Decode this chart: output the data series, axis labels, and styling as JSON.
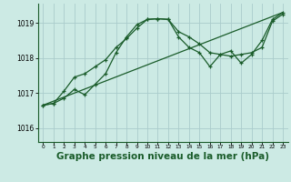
{
  "bg_color": "#cceae4",
  "grid_color": "#aacccc",
  "line_color": "#1a5c2a",
  "marker_color": "#1a5c2a",
  "xlabel": "Graphe pression niveau de la mer (hPa)",
  "xlabel_fontsize": 7.5,
  "xlim": [
    -0.5,
    23.5
  ],
  "ylim": [
    1015.6,
    1019.55
  ],
  "yticks": [
    1016,
    1017,
    1018,
    1019
  ],
  "xticks": [
    0,
    1,
    2,
    3,
    4,
    5,
    6,
    7,
    8,
    9,
    10,
    11,
    12,
    13,
    14,
    15,
    16,
    17,
    18,
    19,
    20,
    21,
    22,
    23
  ],
  "line1_x": [
    0,
    1,
    2,
    3,
    4,
    5,
    6,
    7,
    8,
    9,
    10,
    11,
    12,
    13,
    14,
    15,
    16,
    17,
    18,
    19,
    20,
    21,
    22,
    23
  ],
  "line1_y": [
    1016.65,
    1016.7,
    1017.05,
    1017.45,
    1017.55,
    1017.75,
    1017.95,
    1018.3,
    1018.55,
    1018.85,
    1019.1,
    1019.12,
    1019.1,
    1018.75,
    1018.6,
    1018.4,
    1018.15,
    1018.1,
    1018.05,
    1018.1,
    1018.15,
    1018.3,
    1019.05,
    1019.25
  ],
  "line2_x": [
    0,
    1,
    2,
    3,
    4,
    5,
    6,
    7,
    8,
    9,
    10,
    11,
    12,
    13,
    14,
    15,
    16,
    17,
    18,
    19,
    20,
    21,
    22,
    23
  ],
  "line2_y": [
    1016.65,
    1016.7,
    1016.85,
    1017.1,
    1016.95,
    1017.25,
    1017.55,
    1018.15,
    1018.6,
    1018.95,
    1019.1,
    1019.12,
    1019.1,
    1018.6,
    1018.3,
    1018.15,
    1017.75,
    1018.1,
    1018.2,
    1017.85,
    1018.1,
    1018.5,
    1019.1,
    1019.3
  ],
  "line3_x": [
    0,
    23
  ],
  "line3_y": [
    1016.65,
    1019.3
  ]
}
